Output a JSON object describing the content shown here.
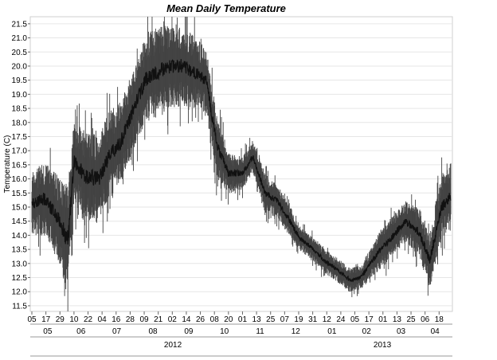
{
  "chart_data": {
    "type": "line",
    "title": "Mean Daily Temperature",
    "ylabel": "Temperature (C)",
    "xlabel": "",
    "ylim": [
      11.3,
      21.75
    ],
    "yticks": [
      "21.5",
      "21.0",
      "20.5",
      "20.0",
      "19.5",
      "19.0",
      "18.5",
      "18.0",
      "17.5",
      "17.0",
      "16.5",
      "16.0",
      "15.5",
      "15.0",
      "14.5",
      "14.0",
      "13.5",
      "13.0",
      "12.5",
      "12.0",
      "11.5"
    ],
    "x_day_labels": [
      "05",
      "17",
      "29",
      "10",
      "22",
      "04",
      "16",
      "28",
      "09",
      "21",
      "02",
      "14",
      "26",
      "08",
      "20",
      "01",
      "13",
      "25",
      "07",
      "19",
      "31",
      "12",
      "24",
      "05",
      "17",
      "01",
      "13",
      "25",
      "06",
      "18"
    ],
    "x_month_labels": [
      "05",
      "06",
      "07",
      "08",
      "09",
      "10",
      "11",
      "12",
      "01",
      "02",
      "03",
      "04"
    ],
    "x_year_labels": [
      "2012",
      "2013"
    ],
    "x_range": [
      "2012-05-05",
      "2013-04-28"
    ],
    "grid": true,
    "series": [
      {
        "color": "#111111",
        "band_color": "#444444",
        "x": [
          "2012-05-05",
          "2012-05-15",
          "2012-05-25",
          "2012-06-05",
          "2012-06-10",
          "2012-06-20",
          "2012-07-01",
          "2012-07-10",
          "2012-07-20",
          "2012-08-01",
          "2012-08-10",
          "2012-08-20",
          "2012-09-01",
          "2012-09-10",
          "2012-09-20",
          "2012-10-01",
          "2012-10-10",
          "2012-10-20",
          "2012-11-01",
          "2012-11-10",
          "2012-11-20",
          "2012-12-01",
          "2012-12-10",
          "2012-12-20",
          "2013-01-01",
          "2013-01-10",
          "2013-01-20",
          "2013-02-01",
          "2013-02-10",
          "2013-02-20",
          "2013-03-01",
          "2013-03-10",
          "2013-03-20",
          "2013-04-01",
          "2013-04-10",
          "2013-04-20",
          "2013-04-28"
        ],
        "values": [
          15.1,
          15.3,
          14.8,
          13.8,
          16.6,
          16.1,
          16.0,
          16.8,
          17.3,
          18.6,
          19.5,
          19.8,
          20.0,
          20.0,
          19.8,
          19.5,
          17.2,
          16.2,
          16.2,
          16.8,
          15.5,
          15.2,
          14.6,
          13.9,
          13.5,
          13.1,
          12.8,
          12.4,
          12.5,
          13.1,
          13.6,
          14.0,
          14.5,
          14.1,
          13.1,
          15.0,
          15.4
        ],
        "spread": [
          0.8,
          0.9,
          1.0,
          1.4,
          1.0,
          1.1,
          1.1,
          1.1,
          1.0,
          1.0,
          1.1,
          1.1,
          1.0,
          1.0,
          0.9,
          0.8,
          0.8,
          0.5,
          0.4,
          0.4,
          0.5,
          0.4,
          0.4,
          0.3,
          0.3,
          0.3,
          0.3,
          0.3,
          0.3,
          0.4,
          0.5,
          0.5,
          0.5,
          0.6,
          0.7,
          0.8,
          0.8
        ]
      }
    ]
  }
}
